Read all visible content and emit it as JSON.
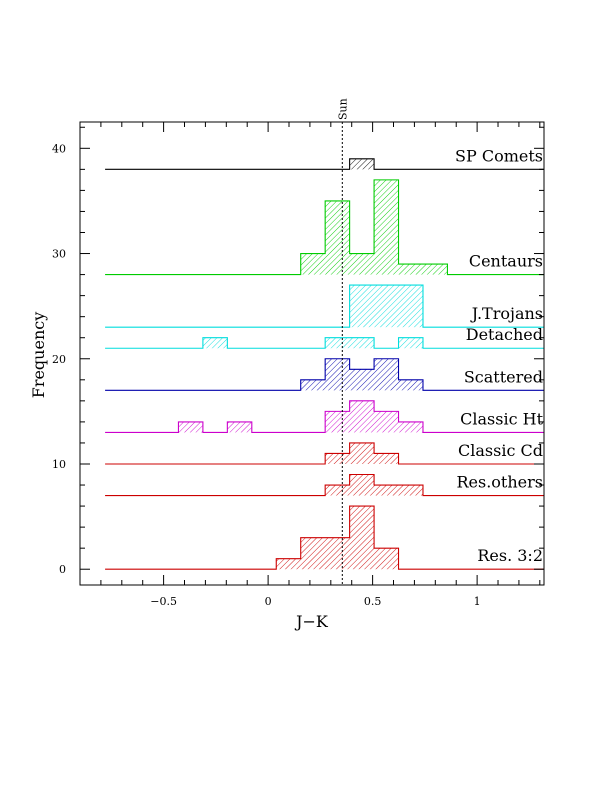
{
  "chart_data": {
    "type": "histogram-stack",
    "xlabel": "J−K",
    "ylabel": "Frequency",
    "xlim": [
      -0.9,
      1.32
    ],
    "ylim": [
      -1.5,
      42.5
    ],
    "x_ticks": [
      -0.5,
      0,
      0.5,
      1
    ],
    "x_tick_labels": [
      "−0.5",
      "0",
      "0.5",
      "1"
    ],
    "y_ticks": [
      0,
      10,
      20,
      30,
      40
    ],
    "y_tick_labels": [
      "0",
      "10",
      "20",
      "30",
      "40"
    ],
    "sun": {
      "label": "Sun",
      "x": 0.355
    },
    "bin_width": 0.117,
    "series": [
      {
        "name": "SP Comets",
        "color": "#000000",
        "baseline": 38,
        "bins": [
          {
            "x0": 0.39,
            "x1": 0.507,
            "y": 39
          }
        ]
      },
      {
        "name": "Centaurs",
        "color": "#00cc00",
        "baseline": 28,
        "bins": [
          {
            "x0": 0.156,
            "x1": 0.273,
            "y": 30
          },
          {
            "x0": 0.273,
            "x1": 0.39,
            "y": 35
          },
          {
            "x0": 0.39,
            "x1": 0.507,
            "y": 30
          },
          {
            "x0": 0.507,
            "x1": 0.624,
            "y": 37
          },
          {
            "x0": 0.624,
            "x1": 0.741,
            "y": 29
          },
          {
            "x0": 0.741,
            "x1": 0.858,
            "y": 29
          }
        ]
      },
      {
        "name": "J.Trojans",
        "color": "#00dddd",
        "baseline": 23,
        "bins": [
          {
            "x0": 0.39,
            "x1": 0.741,
            "y": 27
          }
        ]
      },
      {
        "name": "Detached",
        "color": "#00dddd",
        "baseline": 21,
        "bins": [
          {
            "x0": -0.312,
            "x1": -0.195,
            "y": 22
          },
          {
            "x0": 0.273,
            "x1": 0.507,
            "y": 22
          },
          {
            "x0": 0.624,
            "x1": 0.741,
            "y": 22
          }
        ]
      },
      {
        "name": "Scattered",
        "color": "#0000aa",
        "baseline": 17,
        "bins": [
          {
            "x0": 0.156,
            "x1": 0.273,
            "y": 18
          },
          {
            "x0": 0.273,
            "x1": 0.39,
            "y": 20
          },
          {
            "x0": 0.39,
            "x1": 0.507,
            "y": 19
          },
          {
            "x0": 0.507,
            "x1": 0.624,
            "y": 20
          },
          {
            "x0": 0.624,
            "x1": 0.741,
            "y": 18
          }
        ]
      },
      {
        "name": "Classic Ht",
        "color": "#cc00cc",
        "baseline": 13,
        "bins": [
          {
            "x0": -0.429,
            "x1": -0.312,
            "y": 14
          },
          {
            "x0": -0.195,
            "x1": -0.078,
            "y": 14
          },
          {
            "x0": 0.273,
            "x1": 0.39,
            "y": 15
          },
          {
            "x0": 0.39,
            "x1": 0.507,
            "y": 16
          },
          {
            "x0": 0.507,
            "x1": 0.624,
            "y": 15
          },
          {
            "x0": 0.624,
            "x1": 0.741,
            "y": 14
          }
        ]
      },
      {
        "name": "Classic Cd",
        "color": "#cc0000",
        "baseline": 10,
        "bins": [
          {
            "x0": 0.273,
            "x1": 0.39,
            "y": 11
          },
          {
            "x0": 0.39,
            "x1": 0.507,
            "y": 12
          },
          {
            "x0": 0.507,
            "x1": 0.624,
            "y": 11
          }
        ]
      },
      {
        "name": "Res.others",
        "color": "#cc0000",
        "baseline": 7,
        "bins": [
          {
            "x0": 0.273,
            "x1": 0.39,
            "y": 8
          },
          {
            "x0": 0.39,
            "x1": 0.507,
            "y": 9
          },
          {
            "x0": 0.507,
            "x1": 0.741,
            "y": 8
          }
        ]
      },
      {
        "name": "Res. 3:2",
        "color": "#cc0000",
        "baseline": 0,
        "bins": [
          {
            "x0": 0.039,
            "x1": 0.156,
            "y": 1
          },
          {
            "x0": 0.156,
            "x1": 0.39,
            "y": 3
          },
          {
            "x0": 0.39,
            "x1": 0.507,
            "y": 6
          },
          {
            "x0": 0.507,
            "x1": 0.624,
            "y": 2
          }
        ]
      }
    ]
  }
}
